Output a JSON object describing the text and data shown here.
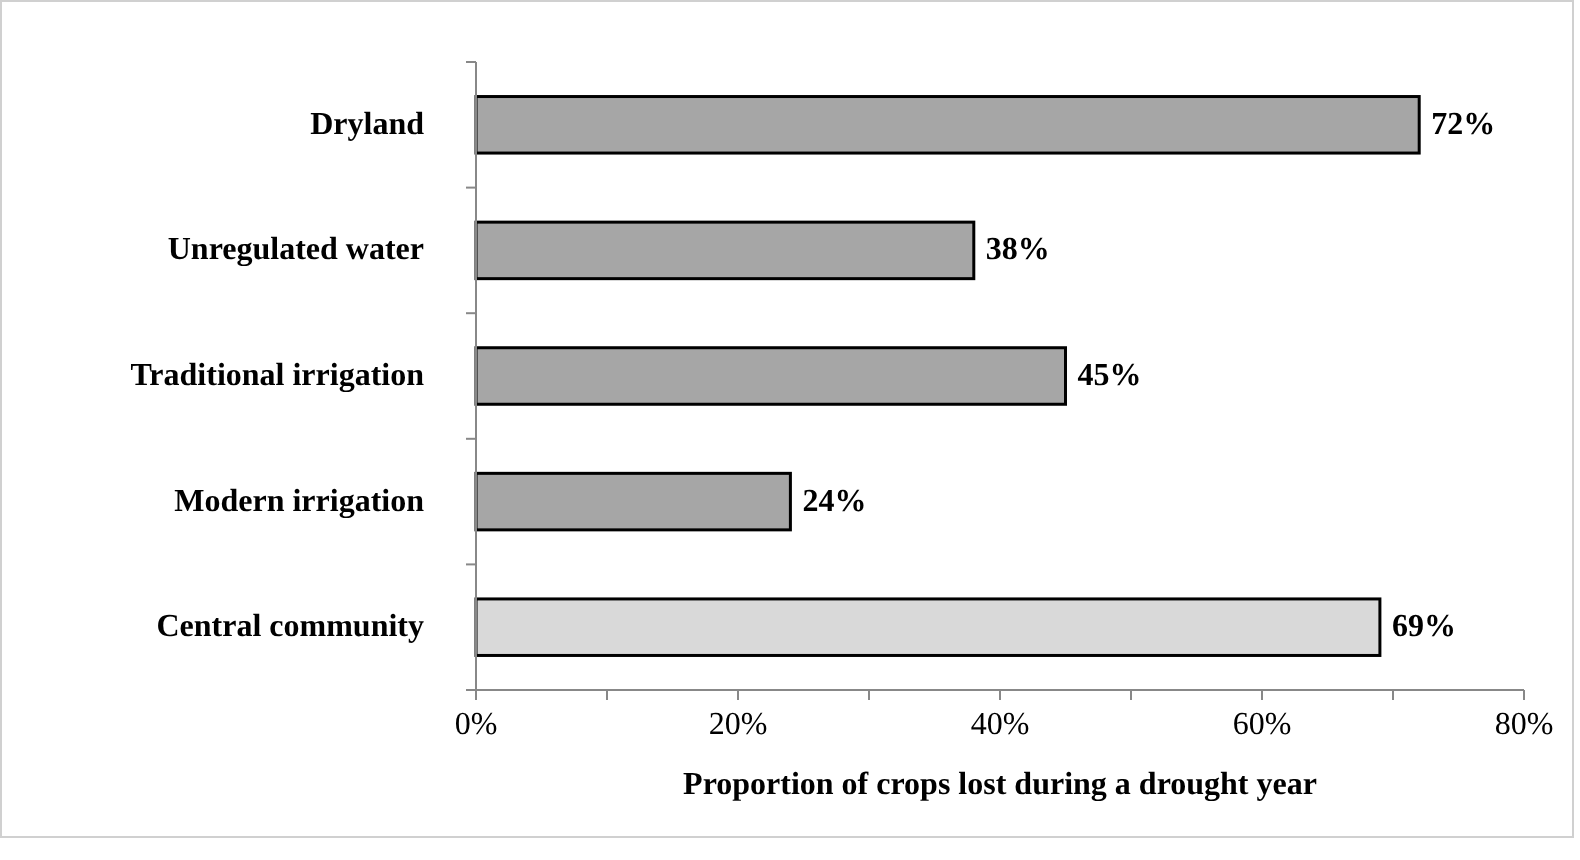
{
  "chart_data": {
    "type": "bar",
    "orientation": "horizontal",
    "xlabel": "Proportion of crops lost during a drought year",
    "categories": [
      "Dryland",
      "Unregulated water",
      "Traditional irrigation",
      "Modern irrigation",
      "Central community"
    ],
    "values": [
      72,
      38,
      45,
      24,
      69
    ],
    "colors": [
      "#a6a6a6",
      "#a6a6a6",
      "#a6a6a6",
      "#a6a6a6",
      "#d9d9d9"
    ],
    "value_labels": [
      "72%",
      "38%",
      "45%",
      "24%",
      "69%"
    ],
    "xlim": [
      0,
      80
    ],
    "xticks": [
      {
        "value": 0,
        "label": "0%"
      },
      {
        "value": 10,
        "label": null
      },
      {
        "value": 20,
        "label": "20%"
      },
      {
        "value": 30,
        "label": null
      },
      {
        "value": 40,
        "label": "40%"
      },
      {
        "value": 50,
        "label": null
      },
      {
        "value": 60,
        "label": "60%"
      },
      {
        "value": 70,
        "label": null
      },
      {
        "value": 80,
        "label": "80%"
      }
    ],
    "grid": false
  }
}
